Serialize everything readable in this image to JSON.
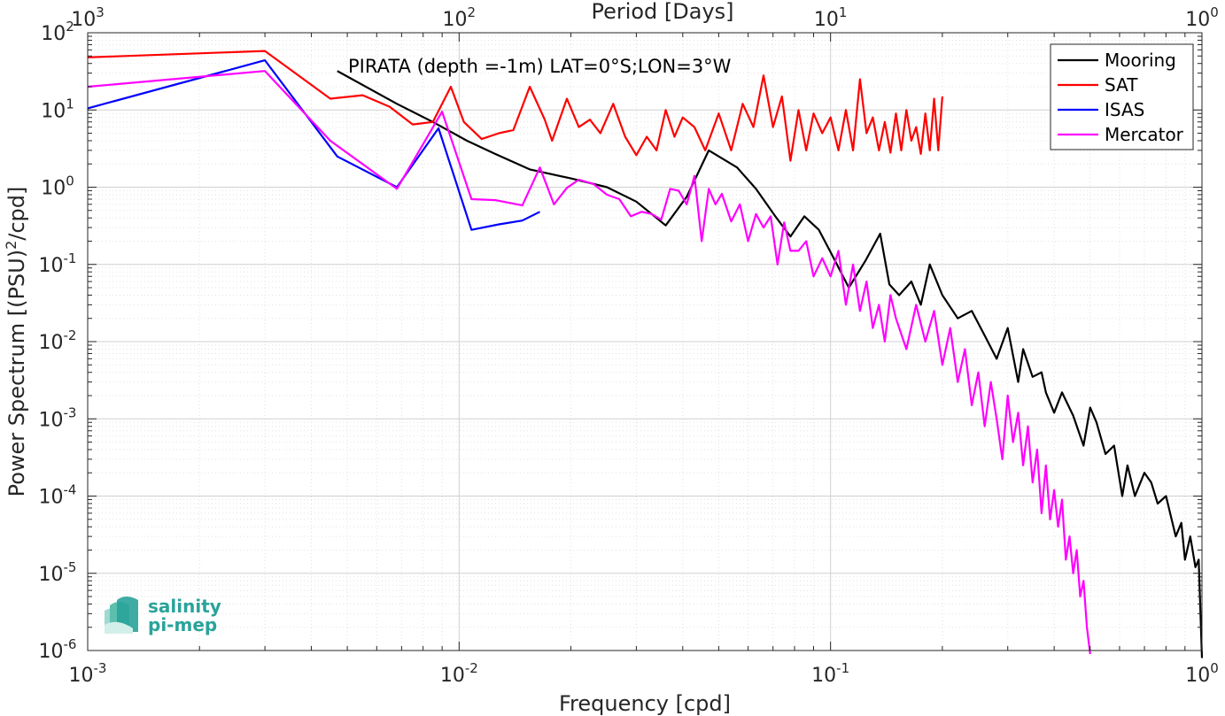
{
  "chart_data": {
    "type": "line",
    "title": "PIRATA (depth =-1m) LAT=0°S;LON=3°W",
    "xlabel": "Frequency [cpd]",
    "ylabel_main": "Power Spectrum [(PSU)",
    "ylabel_sup": "2",
    "ylabel_tail": "/cpd]",
    "top_xlabel": "Period [Days]",
    "x_scale": "log",
    "y_scale": "log",
    "xlim": [
      0.001,
      1
    ],
    "ylim": [
      1e-06,
      100
    ],
    "grid": true,
    "legend_position": "top-right",
    "x_ticks": [
      {
        "value": 0.001,
        "base": "10",
        "exp": "-3"
      },
      {
        "value": 0.01,
        "base": "10",
        "exp": "-2"
      },
      {
        "value": 0.1,
        "base": "10",
        "exp": "-1"
      },
      {
        "value": 1,
        "base": "10",
        "exp": "0"
      }
    ],
    "top_ticks": [
      {
        "value": 0.001,
        "base": "10",
        "exp": "3"
      },
      {
        "value": 0.01,
        "base": "10",
        "exp": "2"
      },
      {
        "value": 0.1,
        "base": "10",
        "exp": "1"
      },
      {
        "value": 1,
        "base": "10",
        "exp": "0"
      }
    ],
    "y_ticks": [
      {
        "value": 100,
        "base": "10",
        "exp": "2"
      },
      {
        "value": 10,
        "base": "10",
        "exp": "1"
      },
      {
        "value": 1,
        "base": "10",
        "exp": "0"
      },
      {
        "value": 0.1,
        "base": "10",
        "exp": "-1"
      },
      {
        "value": 0.01,
        "base": "10",
        "exp": "-2"
      },
      {
        "value": 0.001,
        "base": "10",
        "exp": "-3"
      },
      {
        "value": 0.0001,
        "base": "10",
        "exp": "-4"
      },
      {
        "value": 1e-05,
        "base": "10",
        "exp": "-5"
      },
      {
        "value": 1e-06,
        "base": "10",
        "exp": "-6"
      }
    ],
    "series": [
      {
        "name": "Mooring",
        "color": "#000000",
        "x": [
          0.0047,
          0.0068,
          0.0085,
          0.0105,
          0.0125,
          0.0155,
          0.02,
          0.025,
          0.03,
          0.036,
          0.041,
          0.047,
          0.056,
          0.063,
          0.071,
          0.078,
          0.085,
          0.093,
          0.102,
          0.112,
          0.124,
          0.136,
          0.144,
          0.153,
          0.165,
          0.175,
          0.185,
          0.2,
          0.22,
          0.24,
          0.26,
          0.28,
          0.3,
          0.32,
          0.33,
          0.35,
          0.37,
          0.38,
          0.4,
          0.42,
          0.45,
          0.48,
          0.5,
          0.52,
          0.55,
          0.58,
          0.61,
          0.63,
          0.66,
          0.7,
          0.73,
          0.76,
          0.8,
          0.85,
          0.88,
          0.9,
          0.93,
          0.96,
          0.98,
          1.0
        ],
        "values": [
          32,
          12,
          7,
          4,
          2.7,
          1.7,
          1.3,
          1.0,
          0.65,
          0.32,
          0.75,
          3.0,
          1.8,
          0.95,
          0.42,
          0.23,
          0.42,
          0.28,
          0.12,
          0.05,
          0.11,
          0.25,
          0.055,
          0.04,
          0.06,
          0.03,
          0.1,
          0.04,
          0.02,
          0.025,
          0.012,
          0.006,
          0.015,
          0.003,
          0.008,
          0.0035,
          0.004,
          0.0022,
          0.0012,
          0.0022,
          0.0011,
          0.00045,
          0.0014,
          0.0009,
          0.00035,
          0.00045,
          0.0001,
          0.00025,
          0.0001,
          0.0002,
          0.00015,
          8e-05,
          0.0001,
          3e-05,
          4.5e-05,
          1.5e-05,
          3e-05,
          1.2e-05,
          1.5e-05,
          8e-07
        ]
      },
      {
        "name": "SAT",
        "color": "#ff0000",
        "x": [
          0.001,
          0.003,
          0.0045,
          0.0055,
          0.0065,
          0.0075,
          0.0085,
          0.0095,
          0.0103,
          0.0115,
          0.0128,
          0.014,
          0.0155,
          0.017,
          0.0178,
          0.0195,
          0.021,
          0.0225,
          0.024,
          0.026,
          0.028,
          0.03,
          0.032,
          0.034,
          0.036,
          0.038,
          0.04,
          0.043,
          0.046,
          0.05,
          0.054,
          0.058,
          0.062,
          0.066,
          0.07,
          0.074,
          0.078,
          0.082,
          0.086,
          0.09,
          0.095,
          0.1,
          0.105,
          0.11,
          0.115,
          0.12,
          0.125,
          0.13,
          0.135,
          0.14,
          0.145,
          0.15,
          0.155,
          0.16,
          0.165,
          0.17,
          0.175,
          0.18,
          0.185,
          0.19,
          0.195,
          0.2
        ],
        "values": [
          48,
          58,
          14,
          15.5,
          11,
          6.5,
          7,
          20,
          7,
          4.2,
          5,
          5.5,
          20,
          7.5,
          4,
          14,
          6,
          7.5,
          5,
          12,
          4.5,
          2.6,
          4.5,
          3,
          10,
          4.5,
          8,
          6,
          3,
          9,
          3,
          12,
          6,
          28,
          6,
          15,
          2.2,
          10,
          3,
          9,
          5,
          8,
          3,
          10,
          3,
          25,
          5,
          8,
          3,
          7,
          2.8,
          9,
          3,
          10,
          4,
          6,
          2.7,
          9,
          3,
          14,
          3,
          15
        ]
      },
      {
        "name": "ISAS",
        "color": "#0000ff",
        "x": [
          0.001,
          0.003,
          0.0047,
          0.0068,
          0.0088,
          0.0108,
          0.0128,
          0.0148,
          0.0165
        ],
        "values": [
          10.5,
          44,
          2.5,
          1.0,
          5.8,
          0.28,
          0.33,
          0.37,
          0.48
        ]
      },
      {
        "name": "Mercator",
        "color": "#ff00ff",
        "x": [
          0.001,
          0.003,
          0.0045,
          0.0068,
          0.009,
          0.0108,
          0.0125,
          0.0148,
          0.0165,
          0.018,
          0.0195,
          0.021,
          0.023,
          0.025,
          0.027,
          0.029,
          0.031,
          0.033,
          0.035,
          0.037,
          0.039,
          0.041,
          0.043,
          0.045,
          0.047,
          0.049,
          0.051,
          0.054,
          0.057,
          0.06,
          0.063,
          0.066,
          0.069,
          0.072,
          0.075,
          0.078,
          0.082,
          0.086,
          0.09,
          0.095,
          0.1,
          0.105,
          0.11,
          0.115,
          0.12,
          0.125,
          0.13,
          0.135,
          0.14,
          0.145,
          0.15,
          0.16,
          0.17,
          0.18,
          0.19,
          0.2,
          0.21,
          0.22,
          0.23,
          0.24,
          0.25,
          0.26,
          0.27,
          0.28,
          0.29,
          0.3,
          0.31,
          0.32,
          0.33,
          0.34,
          0.35,
          0.36,
          0.37,
          0.38,
          0.39,
          0.4,
          0.41,
          0.42,
          0.43,
          0.44,
          0.45,
          0.46,
          0.47,
          0.48,
          0.49,
          0.5
        ],
        "values": [
          20,
          32,
          4,
          0.95,
          9.5,
          0.7,
          0.68,
          0.58,
          1.8,
          0.6,
          0.98,
          1.25,
          1.1,
          0.8,
          0.7,
          0.42,
          0.48,
          0.45,
          0.38,
          0.95,
          0.9,
          0.6,
          1.4,
          0.2,
          0.95,
          0.6,
          0.82,
          0.36,
          0.6,
          0.2,
          0.45,
          0.3,
          0.42,
          0.1,
          0.35,
          0.15,
          0.15,
          0.2,
          0.07,
          0.12,
          0.07,
          0.15,
          0.03,
          0.1,
          0.025,
          0.06,
          0.015,
          0.03,
          0.01,
          0.04,
          0.02,
          0.008,
          0.03,
          0.01,
          0.025,
          0.005,
          0.015,
          0.003,
          0.008,
          0.0015,
          0.004,
          0.0008,
          0.003,
          0.001,
          0.0003,
          0.002,
          0.0005,
          0.0012,
          0.00025,
          0.0008,
          0.00015,
          0.0004,
          6e-05,
          0.00025,
          5e-05,
          0.00012,
          4e-05,
          9e-05,
          1.5e-05,
          3e-05,
          1e-05,
          2e-05,
          5e-06,
          8e-06,
          2e-06,
          9e-07
        ]
      }
    ]
  },
  "logo": {
    "line1": "salinity",
    "line2": "pi-mep"
  }
}
